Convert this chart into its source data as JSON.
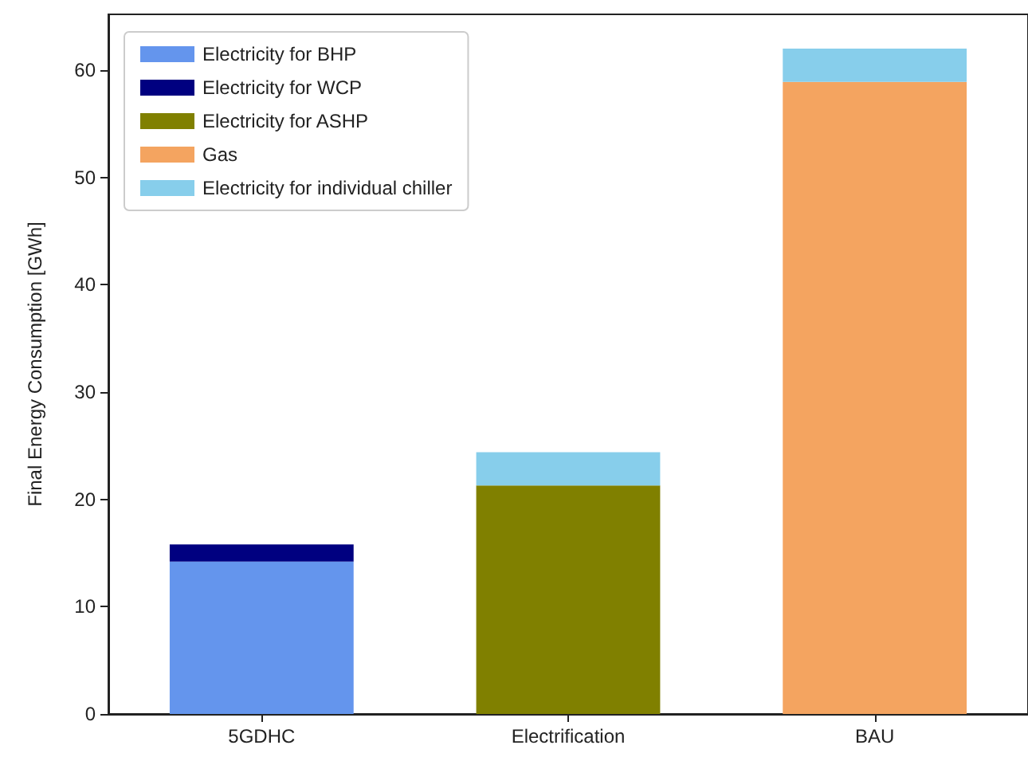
{
  "chart_data": {
    "type": "bar",
    "ylabel": "Final Energy Consumption [GWh]",
    "categories": [
      "5GDHC",
      "Electrification",
      "BAU"
    ],
    "stacked": true,
    "legend": "top left",
    "grid": false,
    "ylim": [
      0,
      65.2
    ],
    "yticks": [
      0,
      10,
      20,
      30,
      40,
      50,
      60
    ],
    "series": [
      {
        "name": "Electricity for BHP",
        "color": "#6495ed",
        "values": [
          14.2,
          0,
          0
        ]
      },
      {
        "name": "Electricity for WCP",
        "color": "#000080",
        "values": [
          1.6,
          0,
          0
        ]
      },
      {
        "name": "Electricity for ASHP",
        "color": "#808000",
        "values": [
          0,
          21.3,
          0
        ]
      },
      {
        "name": "Gas",
        "color": "#f4a460",
        "values": [
          0,
          0,
          58.9
        ]
      },
      {
        "name": "Electricity for individual chiller",
        "color": "#87ceeb",
        "values": [
          0,
          3.1,
          3.1
        ]
      }
    ]
  }
}
